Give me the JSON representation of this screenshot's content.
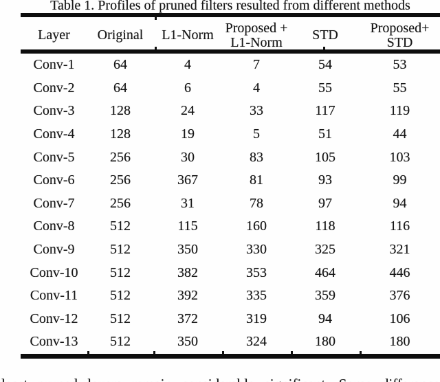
{
  "caption": "Table 1. Profiles of pruned filters resulted from different methods",
  "table": {
    "columns": [
      {
        "line1": "Layer",
        "line2": ""
      },
      {
        "line1": "Original",
        "line2": ""
      },
      {
        "line1": "L1-Norm",
        "line2": ""
      },
      {
        "line1": "Proposed +",
        "line2": "L1-Norm"
      },
      {
        "line1": "STD",
        "line2": ""
      },
      {
        "line1": "Proposed+",
        "line2": "STD"
      }
    ],
    "rows": [
      {
        "cells": [
          "Conv-1",
          "64",
          "4",
          "7",
          "54",
          "53"
        ]
      },
      {
        "cells": [
          "Conv-2",
          "64",
          "6",
          "4",
          "55",
          "55"
        ]
      },
      {
        "cells": [
          "Conv-3",
          "128",
          "24",
          "33",
          "117",
          "119"
        ]
      },
      {
        "cells": [
          "Conv-4",
          "128",
          "19",
          "5",
          "51",
          "44"
        ]
      },
      {
        "cells": [
          "Conv-5",
          "256",
          "30",
          "83",
          "105",
          "103"
        ]
      },
      {
        "cells": [
          "Conv-6",
          "256",
          "367",
          "81",
          "93",
          "99"
        ]
      },
      {
        "cells": [
          "Conv-7",
          "256",
          "31",
          "78",
          "97",
          "94"
        ]
      },
      {
        "cells": [
          "Conv-8",
          "512",
          "115",
          "160",
          "118",
          "116"
        ]
      },
      {
        "cells": [
          "Conv-9",
          "512",
          "350",
          "330",
          "325",
          "321"
        ]
      },
      {
        "cells": [
          "Conv-10",
          "512",
          "382",
          "353",
          "464",
          "446"
        ]
      },
      {
        "cells": [
          "Conv-11",
          "512",
          "392",
          "335",
          "359",
          "376"
        ]
      },
      {
        "cells": [
          "Conv-12",
          "512",
          "372",
          "319",
          "94",
          "106"
        ]
      },
      {
        "cells": [
          "Conv-13",
          "512",
          "350",
          "324",
          "180",
          "180"
        ]
      }
    ]
  },
  "body_text_cropped": "least pruned layers remain considerable significant. Some difference",
  "colors": {
    "background": "#fefefe",
    "text": "#161616",
    "rule": "#0d0d0d"
  }
}
